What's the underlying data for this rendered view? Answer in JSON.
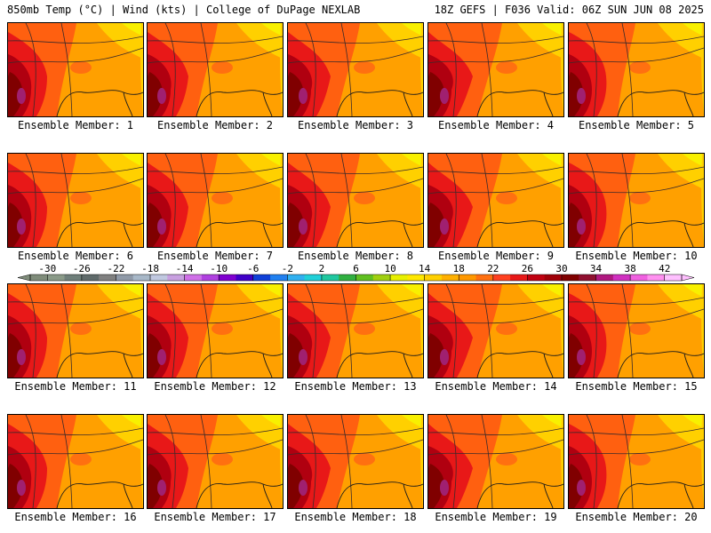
{
  "header": {
    "left": "850mb Temp (°C) | Wind (kts) | College of DuPage NEXLAB",
    "right": "18Z GEFS | F036 Valid: 06Z SUN JUN 08 2025"
  },
  "panel_label_prefix": "Ensemble Member: ",
  "members": [
    1,
    2,
    3,
    4,
    5,
    6,
    7,
    8,
    9,
    10,
    11,
    12,
    13,
    14,
    15,
    16,
    17,
    18,
    19,
    20
  ],
  "colorbar": {
    "tick_labels": [
      "-30",
      "-26",
      "-22",
      "-18",
      "-14",
      "-10",
      "-6",
      "-2",
      "2",
      "6",
      "10",
      "14",
      "18",
      "22",
      "26",
      "30",
      "34",
      "38",
      "42"
    ],
    "min": -32,
    "max": 44,
    "colors": [
      "#7f8c7a",
      "#8a9a88",
      "#6f7f7a",
      "#5f6a6a",
      "#808080",
      "#909aa8",
      "#a8b8c8",
      "#c0c8e0",
      "#c8a0e0",
      "#d070e8",
      "#b040e0",
      "#8000d0",
      "#4000c8",
      "#1040d8",
      "#2080f0",
      "#30b0f0",
      "#20d0d8",
      "#20c8a0",
      "#30b040",
      "#60c020",
      "#a0d010",
      "#e8f000",
      "#ffe800",
      "#ffd000",
      "#ffb000",
      "#ff9800",
      "#ff7010",
      "#ff4020",
      "#e81818",
      "#c00010",
      "#a00008",
      "#800000",
      "#901030",
      "#b01880",
      "#d030c0",
      "#f060e0",
      "#ff90f0",
      "#ffc0ff"
    ]
  }
}
